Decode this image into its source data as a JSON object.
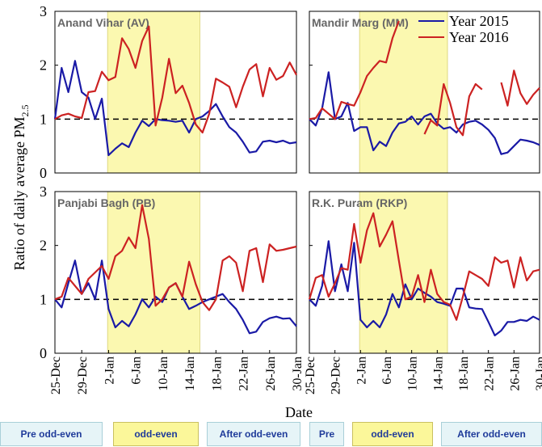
{
  "axis_labels": {
    "y": "Ratio of daily average PM",
    "y_sub": "2.5",
    "x": "Date"
  },
  "period_bar": [
    [
      {
        "text": "Pre odd-even",
        "highlight": false
      },
      {
        "text": "odd-even",
        "highlight": true
      },
      {
        "text": "After odd-even",
        "highlight": false
      }
    ],
    [
      {
        "text": "Pre",
        "highlight": false
      },
      {
        "text": "odd-even",
        "highlight": true
      },
      {
        "text": "After odd-even",
        "highlight": false
      }
    ]
  ],
  "chart_data": [
    {
      "type": "line",
      "title": "Anand Vihar (AV)",
      "ylim": [
        0,
        3
      ],
      "yticks": [
        0,
        1,
        2,
        3
      ],
      "reference_line": 1,
      "tick_labels": true,
      "series": [
        {
          "color": "#1a1aa6",
          "values": [
            1.0,
            1.95,
            1.5,
            2.08,
            1.5,
            1.4,
            1.0,
            1.38,
            0.33,
            0.45,
            0.55,
            0.48,
            0.75,
            0.97,
            0.87,
            1.0,
            0.98,
            0.97,
            0.95,
            0.97,
            0.75,
            1.0,
            1.05,
            1.15,
            1.28,
            1.05,
            0.85,
            0.75,
            0.58,
            0.38,
            0.4,
            0.58,
            0.6,
            0.57,
            0.6,
            0.55,
            0.57
          ]
        },
        {
          "color": "#cc2222",
          "values": [
            1.0,
            1.07,
            1.1,
            1.05,
            1.02,
            1.5,
            1.52,
            1.88,
            1.72,
            1.78,
            2.5,
            2.3,
            1.95,
            2.45,
            2.72,
            0.88,
            1.4,
            2.12,
            1.48,
            1.62,
            1.3,
            0.9,
            0.75,
            1.1,
            1.75,
            1.68,
            1.6,
            1.22,
            1.6,
            1.92,
            2.02,
            1.42,
            1.95,
            1.73,
            1.8,
            2.05,
            1.82
          ]
        }
      ]
    },
    {
      "type": "line",
      "title": "Mandir Marg (MM)",
      "ylim": [
        0,
        3
      ],
      "yticks": [
        0,
        1,
        2,
        3
      ],
      "reference_line": 1,
      "tick_labels": false,
      "legend": "top-right",
      "series": [
        {
          "name": "Year 2015",
          "color": "#1a1aa6",
          "values": [
            1.0,
            0.88,
            1.2,
            1.87,
            1.0,
            1.05,
            1.3,
            0.78,
            0.85,
            0.85,
            0.42,
            0.58,
            0.5,
            0.75,
            0.92,
            0.95,
            1.05,
            0.9,
            1.05,
            1.1,
            0.92,
            0.82,
            0.85,
            0.75,
            0.9,
            0.95,
            0.97,
            0.9,
            0.8,
            0.65,
            0.35,
            0.38,
            0.5,
            0.62,
            0.6,
            0.57,
            0.52
          ]
        },
        {
          "name": "Year 2016",
          "color": "#cc2222",
          "values": [
            1.0,
            1.02,
            1.2,
            1.1,
            1.0,
            1.32,
            1.28,
            1.25,
            1.5,
            1.8,
            1.95,
            2.08,
            2.05,
            2.5,
            2.82,
            null,
            null,
            null,
            0.72,
            0.98,
            0.88,
            1.65,
            1.3,
            0.85,
            0.7,
            1.42,
            1.65,
            1.55,
            null,
            null,
            1.68,
            1.25,
            1.9,
            1.48,
            1.28,
            1.45,
            1.58
          ]
        }
      ]
    },
    {
      "type": "line",
      "title": "Panjabi Bagh (PB)",
      "ylim": [
        0,
        3
      ],
      "yticks": [
        0,
        1,
        2,
        3
      ],
      "reference_line": 1,
      "tick_labels": true,
      "categories": [
        "25-Dec",
        null,
        null,
        null,
        "29-Dec",
        null,
        null,
        null,
        "2-Jan",
        null,
        null,
        null,
        "6-Jan",
        null,
        null,
        null,
        "10-Jan",
        null,
        null,
        null,
        "14-Jan",
        null,
        null,
        null,
        "18-Jan",
        null,
        null,
        null,
        "22-Jan",
        null,
        null,
        null,
        "26-Jan",
        null,
        null,
        null,
        "30-Jan"
      ],
      "series": [
        {
          "color": "#1a1aa6",
          "values": [
            1.0,
            0.85,
            1.3,
            1.72,
            1.1,
            1.3,
            1.0,
            1.72,
            0.82,
            0.48,
            0.6,
            0.5,
            0.72,
            1.0,
            0.85,
            1.05,
            0.95,
            1.22,
            1.3,
            1.05,
            0.82,
            0.88,
            0.95,
            1.0,
            1.05,
            1.1,
            0.95,
            0.82,
            0.62,
            0.37,
            0.4,
            0.58,
            0.65,
            0.68,
            0.64,
            0.65,
            0.5
          ]
        },
        {
          "color": "#cc2222",
          "values": [
            1.0,
            1.05,
            1.4,
            1.25,
            1.1,
            1.38,
            1.5,
            1.62,
            1.38,
            1.8,
            1.9,
            2.15,
            1.95,
            2.75,
            2.12,
            0.88,
            1.0,
            1.22,
            1.3,
            1.05,
            1.7,
            1.28,
            0.95,
            0.8,
            1.0,
            1.72,
            1.8,
            1.68,
            1.15,
            1.9,
            1.95,
            1.32,
            2.02,
            1.9,
            1.92,
            1.95,
            1.98
          ]
        }
      ]
    },
    {
      "type": "line",
      "title": "R.K. Puram (RKP)",
      "ylim": [
        0,
        3
      ],
      "yticks": [
        0,
        1,
        2,
        3
      ],
      "reference_line": 1,
      "tick_labels": false,
      "categories": [
        "25-Dec",
        null,
        null,
        null,
        "29-Dec",
        null,
        null,
        null,
        "2-Jan",
        null,
        null,
        null,
        "6-Jan",
        null,
        null,
        null,
        "10-Jan",
        null,
        null,
        null,
        "14-Jan",
        null,
        null,
        null,
        "18-Jan",
        null,
        null,
        null,
        "22-Jan",
        null,
        null,
        null,
        "26-Jan",
        null,
        null,
        null,
        "30-Jan"
      ],
      "series": [
        {
          "color": "#1a1aa6",
          "values": [
            1.0,
            0.88,
            1.25,
            2.08,
            1.15,
            1.65,
            1.15,
            2.05,
            0.62,
            0.48,
            0.6,
            0.48,
            0.72,
            1.1,
            0.85,
            1.28,
            1.0,
            1.2,
            1.12,
            1.05,
            0.95,
            0.92,
            0.88,
            1.2,
            1.2,
            0.85,
            0.83,
            0.82,
            0.58,
            0.33,
            0.42,
            0.58,
            0.58,
            0.62,
            0.6,
            0.68,
            0.62
          ]
        },
        {
          "color": "#cc2222",
          "values": [
            1.0,
            1.4,
            1.45,
            1.05,
            1.3,
            1.58,
            1.55,
            2.4,
            1.68,
            2.28,
            2.6,
            1.98,
            2.2,
            2.45,
            1.72,
            1.0,
            1.05,
            1.45,
            0.95,
            1.55,
            1.1,
            0.95,
            0.9,
            0.62,
            1.05,
            1.52,
            1.45,
            1.38,
            1.25,
            1.78,
            1.68,
            1.72,
            1.22,
            1.78,
            1.35,
            1.52,
            1.55
          ]
        }
      ]
    }
  ]
}
